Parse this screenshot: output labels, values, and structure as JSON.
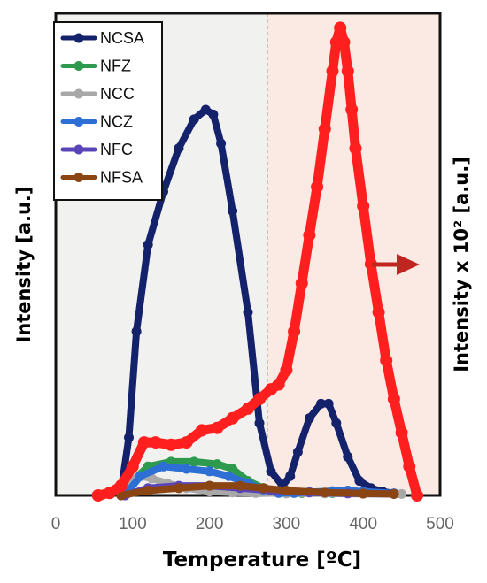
{
  "chart_data": {
    "type": "line",
    "xlabel": "Temperature [ºC]",
    "ylabel_left": "Intensity [a.u.]",
    "ylabel_right": "Intensity x 10² [a.u.]",
    "xlim": [
      0,
      500
    ],
    "xticks": [
      0,
      100,
      200,
      300,
      400,
      500
    ],
    "ylim": [
      0,
      100
    ],
    "grid": false,
    "legend_position": "top-left",
    "regions": [
      {
        "x_from": 0,
        "x_to": 275,
        "color": "#f1f1ef"
      },
      {
        "x_from": 275,
        "x_to": 500,
        "color": "#fbeae3"
      }
    ],
    "divider_x": 275,
    "right_axis_color": "#e0312a",
    "arrow_color": "#c0261f",
    "series": [
      {
        "name": "NCSA",
        "color": "#14216b",
        "axis": "left",
        "x": [
          85,
          95,
          105,
          120,
          140,
          160,
          180,
          195,
          205,
          215,
          230,
          250,
          265,
          280,
          295,
          305,
          315,
          330,
          345,
          355,
          365,
          380,
          395,
          410,
          425,
          440
        ],
        "y": [
          1,
          12,
          34,
          52,
          63,
          72,
          78,
          80,
          79,
          73,
          59,
          38,
          15,
          5,
          2,
          4,
          9,
          16,
          19,
          19,
          15,
          8,
          3,
          1.5,
          0.8,
          0.4
        ]
      },
      {
        "name": "NFZ",
        "color": "#2d9a4f",
        "axis": "left",
        "x": [
          85,
          100,
          120,
          150,
          180,
          210,
          230,
          250,
          270,
          290,
          320,
          360,
          400,
          440
        ],
        "y": [
          0,
          3,
          6,
          7,
          7,
          6.5,
          5.5,
          3,
          1.5,
          0.8,
          0.5,
          0.5,
          0.4,
          0.3
        ]
      },
      {
        "name": "NCC",
        "color": "#a8a8a8",
        "axis": "left",
        "x": [
          60,
          80,
          95,
          110,
          125,
          145,
          170,
          200,
          230,
          260,
          300,
          350,
          400,
          450
        ],
        "y": [
          0,
          1,
          3,
          4,
          3.5,
          2.5,
          1.5,
          0.8,
          0.6,
          0.5,
          0.4,
          0.4,
          0.3,
          0.3
        ]
      },
      {
        "name": "NCZ",
        "color": "#2e6fd6",
        "axis": "left",
        "x": [
          90,
          110,
          140,
          170,
          200,
          225,
          250,
          270,
          290,
          310,
          330,
          360,
          380,
          400,
          440
        ],
        "y": [
          0,
          4,
          6,
          5.5,
          5,
          4,
          2.5,
          1.2,
          0.5,
          0.5,
          0.7,
          0.9,
          1,
          0.8,
          0.4
        ]
      },
      {
        "name": "NFC",
        "color": "#5a45b8",
        "axis": "left",
        "x": [
          90,
          120,
          160,
          200,
          240,
          280,
          330,
          380,
          440
        ],
        "y": [
          0,
          1.5,
          2,
          2,
          1.5,
          1,
          0.6,
          0.4,
          0.3
        ]
      },
      {
        "name": "NFSA",
        "color": "#8b4513",
        "axis": "left",
        "x": [
          85,
          120,
          160,
          200,
          240,
          270,
          300,
          350,
          400,
          440
        ],
        "y": [
          0,
          1,
          1.5,
          2,
          2,
          1.5,
          1,
          0.6,
          0.4,
          0.3
        ]
      },
      {
        "name": "",
        "color": "#ff1f1f",
        "axis": "right",
        "x": [
          55,
          70,
          85,
          100,
          115,
          130,
          150,
          170,
          190,
          210,
          230,
          250,
          265,
          280,
          290,
          300,
          310,
          320,
          330,
          340,
          350,
          360,
          365,
          370,
          375,
          380,
          385,
          390,
          400,
          410,
          420,
          430,
          440,
          450,
          460,
          470
        ],
        "y": [
          0,
          0.5,
          2,
          6,
          11,
          11,
          10.5,
          11,
          13.5,
          14,
          16,
          18,
          20,
          22,
          23,
          26,
          34,
          44,
          54,
          64,
          76,
          88,
          94,
          97,
          94,
          88,
          80,
          72,
          60,
          48,
          38,
          28,
          20,
          13,
          6,
          0
        ]
      }
    ]
  }
}
